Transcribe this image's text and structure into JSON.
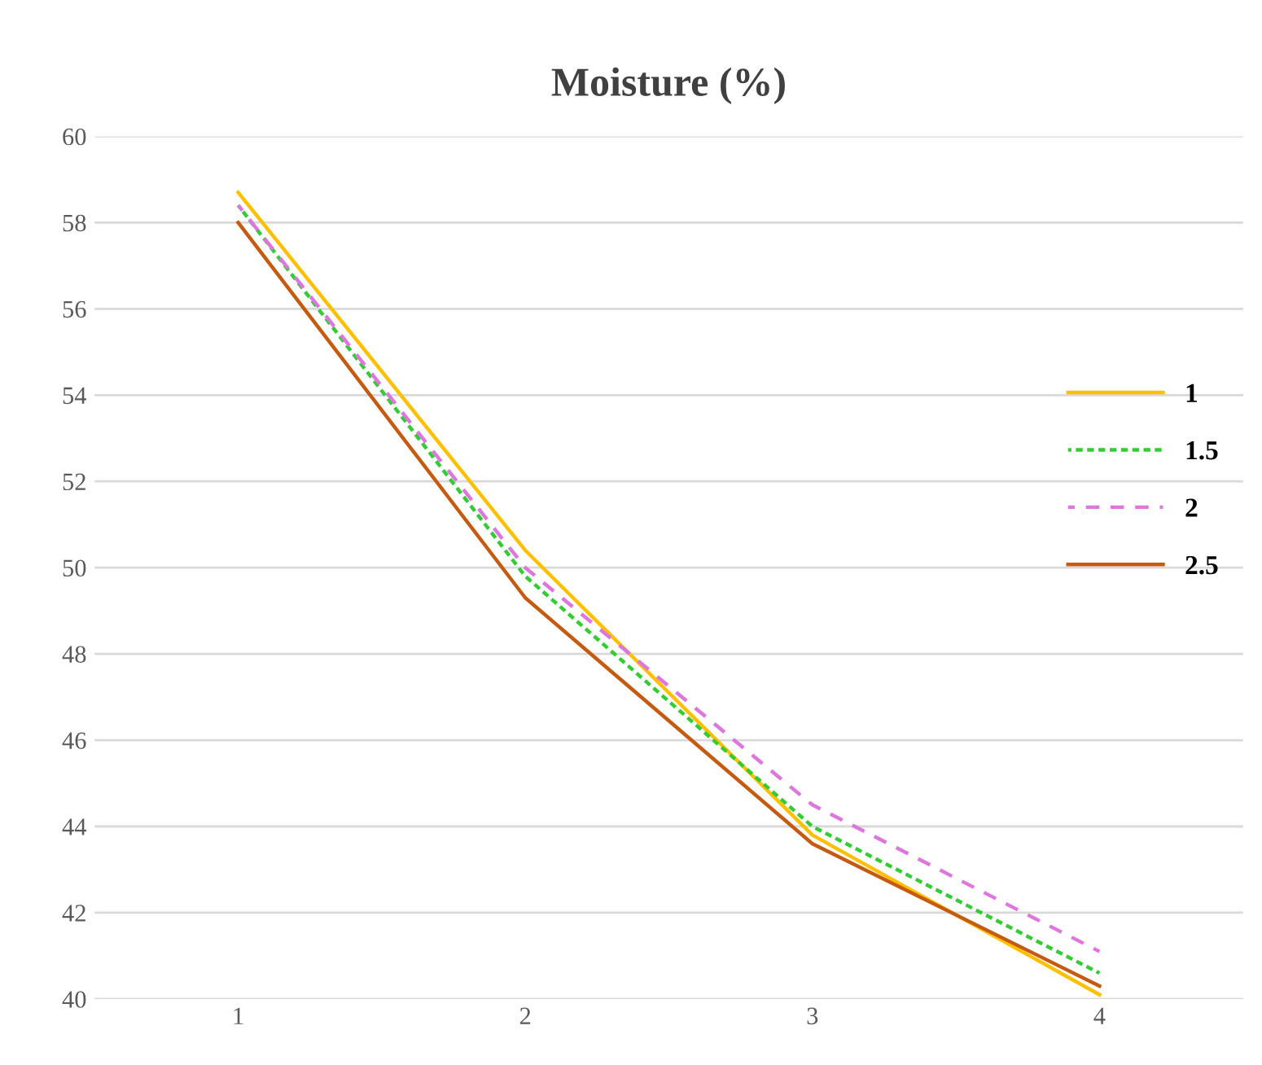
{
  "chart_data": {
    "type": "line",
    "title": "Moisture (%)",
    "categories": [
      "1",
      "2",
      "3",
      "4"
    ],
    "series": [
      {
        "name": "1",
        "color": "#ffc000",
        "line_style": "solid",
        "values": [
          58.7,
          50.4,
          43.8,
          40.1
        ]
      },
      {
        "name": "1.5",
        "color": "#33cc33",
        "line_style": "dotted",
        "values": [
          58.4,
          49.8,
          44.0,
          40.6
        ]
      },
      {
        "name": "2",
        "color": "#dd77dd",
        "line_style": "dashed",
        "values": [
          58.4,
          50.0,
          44.5,
          41.1
        ]
      },
      {
        "name": "2.5",
        "color": "#c55a11",
        "line_style": "solid",
        "values": [
          58.0,
          49.3,
          43.6,
          40.3
        ]
      }
    ],
    "ylim": [
      40,
      60
    ],
    "yticks": [
      40,
      42,
      44,
      46,
      48,
      50,
      52,
      54,
      56,
      58,
      60
    ],
    "grid": "y",
    "legend": "right",
    "marker": "none"
  }
}
